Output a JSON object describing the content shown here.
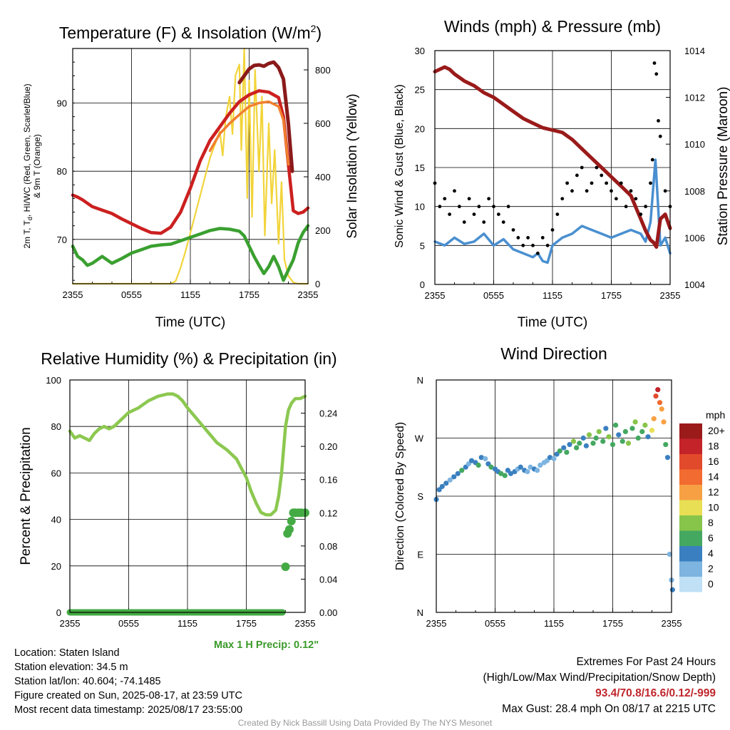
{
  "chart_data": [
    {
      "type": "line",
      "title": "Temperature (F) & Insolation (W/m",
      "title_superscript": "2",
      "title_close": ")",
      "xlabel": "Time (UTC)",
      "ylabel_left_1": "2m T, T",
      "ylabel_left_sub": "d",
      "ylabel_left_2": ", HI/WC (Red, Green, Scarlet/Blue)",
      "ylabel_left_3": "& 9m T (Orange)",
      "ylabel_right": "Solar Insolation (Yellow)",
      "x_ticks": [
        "2355",
        "0555",
        "1155",
        "1755",
        "2355"
      ],
      "ylim_left": [
        63.5,
        98
      ],
      "y_ticks_left": [
        70,
        80,
        90
      ],
      "ylim_right": [
        0,
        880
      ],
      "y_ticks_right": [
        0,
        200,
        400,
        600,
        800
      ],
      "colors": {
        "temp": "#cc2020",
        "hi": "#8b1a1a",
        "t9m": "#f08030",
        "dew": "#3aa030",
        "solar": "#f2d43a"
      },
      "series": [
        {
          "name": "2m T",
          "x": [
            0,
            0.5,
            1,
            2,
            3,
            4,
            5,
            6,
            7,
            8,
            9,
            10,
            11,
            12,
            13,
            14,
            15,
            16,
            17,
            18,
            19,
            20,
            21,
            21.5,
            22,
            22.5,
            23,
            23.5,
            24
          ],
          "values": [
            76.5,
            76.2,
            75.8,
            74.8,
            74.3,
            73.8,
            73.0,
            72.3,
            71.6,
            71.0,
            70.9,
            71.8,
            74.0,
            77.5,
            81.5,
            84.5,
            86.5,
            88.5,
            90.2,
            91.2,
            91.8,
            91.6,
            90.8,
            88.0,
            81.0,
            74.2,
            73.8,
            74.0,
            74.6
          ]
        },
        {
          "name": "Heat Index",
          "x": [
            17,
            17.5,
            18,
            18.5,
            19,
            19.5,
            20,
            20.5,
            21,
            21.5,
            22,
            22.4
          ],
          "values": [
            93.0,
            94.0,
            95.0,
            95.5,
            95.6,
            95.4,
            95.8,
            96.0,
            95.2,
            93.5,
            87.0,
            80.0
          ]
        },
        {
          "name": "9m T",
          "x": [
            14,
            15,
            16,
            17,
            18,
            19,
            20,
            21,
            21.5,
            22
          ],
          "values": [
            83.0,
            85.5,
            87.0,
            88.3,
            89.5,
            90.0,
            90.2,
            89.5,
            87.5,
            81.0
          ]
        },
        {
          "name": "Dew Point",
          "x": [
            0,
            0.5,
            1,
            1.5,
            2,
            3,
            4,
            5,
            6,
            7,
            8,
            9,
            10,
            11,
            12,
            13,
            14,
            15,
            16,
            17,
            17.5,
            18,
            18.5,
            19,
            19.5,
            20,
            20.5,
            21,
            21.5,
            22,
            22.5,
            23,
            23.5,
            24
          ],
          "values": [
            69.0,
            67.5,
            67.0,
            66.2,
            66.5,
            67.5,
            66.5,
            67.2,
            68.0,
            68.5,
            69.0,
            69.2,
            69.3,
            69.8,
            70.3,
            70.8,
            71.3,
            71.6,
            71.5,
            71.2,
            70.5,
            69.0,
            67.5,
            66.2,
            65.0,
            66.0,
            67.5,
            66.0,
            64.0,
            65.5,
            67.0,
            69.5,
            71.0,
            72.0
          ]
        },
        {
          "name": "Solar",
          "x": [
            0,
            9,
            10,
            10.5,
            11,
            11.5,
            12,
            12.5,
            13,
            13.5,
            14,
            14.5,
            15,
            15.3,
            15.6,
            16,
            16.3,
            16.6,
            17,
            17.2,
            17.5,
            17.8,
            18,
            18.3,
            18.6,
            19,
            19.3,
            19.6,
            20,
            20.3,
            20.6,
            21,
            21.3,
            21.6,
            22,
            22.5,
            23,
            24
          ],
          "values": [
            0,
            0,
            0,
            10,
            60,
            120,
            190,
            260,
            330,
            400,
            470,
            520,
            570,
            480,
            620,
            700,
            560,
            780,
            820,
            500,
            880,
            320,
            760,
            250,
            800,
            420,
            700,
            180,
            600,
            300,
            500,
            150,
            380,
            90,
            30,
            5,
            0,
            0
          ]
        }
      ]
    },
    {
      "type": "line",
      "title": "Winds (mph) & Pressure (mb)",
      "xlabel": "Time (UTC)",
      "ylabel_left": "Sonic Wind & Gust (Blue, Black)",
      "ylabel_right": "Station Pressure (Maroon)",
      "x_ticks": [
        "2355",
        "0555",
        "1155",
        "1755",
        "2355"
      ],
      "ylim_left": [
        0,
        30
      ],
      "y_ticks_left": [
        0,
        5,
        10,
        15,
        20,
        25,
        30
      ],
      "ylim_right": [
        1004,
        1014
      ],
      "y_ticks_right": [
        1004,
        1006,
        1008,
        1010,
        1012,
        1014
      ],
      "colors": {
        "wind": "#4a8fd0",
        "gust": "#000000",
        "pressure": "#9a1a1a"
      },
      "series": [
        {
          "name": "Wind",
          "x": [
            0,
            1,
            2,
            3,
            4,
            5,
            6,
            7,
            8,
            9,
            10,
            10.5,
            11,
            11.5,
            12,
            13,
            14,
            15,
            16,
            17,
            18,
            19,
            20,
            21,
            21.5,
            22,
            22.5,
            23,
            23.5,
            24
          ],
          "values": [
            5.5,
            5.0,
            6.0,
            5.2,
            5.5,
            6.5,
            5.0,
            5.8,
            4.5,
            4.0,
            3.5,
            4.0,
            3.0,
            2.8,
            5.0,
            6.0,
            6.5,
            7.5,
            7.0,
            6.5,
            6.0,
            6.5,
            7.0,
            6.5,
            5.5,
            8.0,
            16.0,
            5.0,
            6.0,
            4.0
          ]
        },
        {
          "name": "Gust",
          "x": [
            0,
            0.5,
            1,
            1.5,
            2,
            2.5,
            3,
            3.5,
            4,
            4.5,
            5,
            5.5,
            6,
            6.5,
            7,
            7.5,
            8,
            8.5,
            9,
            9.5,
            10,
            10.5,
            11,
            11.5,
            12,
            12.5,
            13,
            13.5,
            14,
            14.5,
            15,
            15.5,
            16,
            16.5,
            17,
            17.5,
            18,
            18.5,
            19,
            19.5,
            20,
            20.5,
            21,
            21.5,
            22,
            22.2,
            22.4,
            22.6,
            22.8,
            23,
            23.5,
            24
          ],
          "values": [
            13,
            10,
            11,
            9,
            12,
            10,
            8,
            11,
            9,
            10,
            8,
            11,
            10,
            9,
            8,
            10,
            7,
            6,
            5,
            6,
            5,
            4,
            6,
            5,
            7,
            9,
            11,
            13,
            12,
            14,
            15,
            12,
            13,
            15,
            14,
            13,
            12,
            11,
            13,
            10,
            12,
            11,
            9,
            10,
            13,
            16,
            28.4,
            27,
            21,
            19,
            12,
            10
          ]
        },
        {
          "name": "Pressure",
          "x": [
            0,
            0.5,
            1,
            1.5,
            2,
            3,
            4,
            5,
            6,
            7,
            8,
            9,
            10,
            11,
            12,
            13,
            14,
            15,
            16,
            17,
            18,
            19,
            20,
            20.5,
            21,
            21.5,
            22,
            22.3,
            22.6,
            23,
            23.5,
            24
          ],
          "values": [
            1013.1,
            1013.2,
            1013.3,
            1013.2,
            1013.0,
            1012.7,
            1012.5,
            1012.2,
            1012.0,
            1011.7,
            1011.4,
            1011.1,
            1010.9,
            1010.7,
            1010.6,
            1010.5,
            1010.2,
            1009.8,
            1009.4,
            1009.0,
            1008.6,
            1008.2,
            1007.8,
            1007.3,
            1006.8,
            1006.3,
            1005.9,
            1005.8,
            1005.6,
            1006.8,
            1007.0,
            1006.4
          ]
        }
      ]
    },
    {
      "type": "line",
      "title": "Relative Humidity (%) & Precipitation (in)",
      "ylabel_left": "Percent & Precipitation",
      "x_ticks": [
        "2355",
        "0555",
        "1155",
        "1755",
        "2355"
      ],
      "ylim_left": [
        0,
        100
      ],
      "y_ticks_left": [
        0,
        20,
        40,
        60,
        80,
        100
      ],
      "ylim_right": [
        0,
        0.28
      ],
      "y_ticks_right": [
        "0.00",
        "0.04",
        "0.08",
        "0.12",
        "0.16",
        "0.20",
        "0.24"
      ],
      "colors": {
        "rh": "#8cc850",
        "precip": "#44aa44"
      },
      "max_1h_precip": "Max 1 H Precip: 0.12\"",
      "series": [
        {
          "name": "RH",
          "x": [
            0,
            0.5,
            1,
            1.5,
            2,
            2.5,
            3,
            3.5,
            4,
            4.5,
            5,
            5.5,
            6,
            7,
            8,
            9,
            10,
            10.5,
            11,
            11.5,
            12,
            13,
            14,
            15,
            16,
            17,
            17.5,
            18,
            18.5,
            19,
            19.5,
            20,
            20.5,
            21,
            21.3,
            21.6,
            22,
            22.3,
            22.6,
            23,
            23.5,
            24
          ],
          "values": [
            78,
            75,
            76,
            75,
            74,
            77,
            79,
            80,
            79,
            80,
            82,
            84,
            86,
            88,
            91,
            93,
            94,
            94,
            93,
            91,
            88,
            83,
            78,
            73,
            70,
            66,
            62,
            58,
            52,
            47,
            43,
            42,
            42,
            44,
            50,
            60,
            80,
            87,
            90,
            92,
            92,
            93
          ]
        },
        {
          "name": "Precipitation",
          "x": [
            0,
            4,
            8,
            12,
            16,
            20,
            21.5,
            22,
            22.2,
            22.4,
            22.6,
            22.8,
            23,
            23.3,
            23.6,
            24
          ],
          "values": [
            0,
            0,
            0,
            0,
            0,
            0,
            0,
            0.055,
            0.095,
            0.1,
            0.11,
            0.12,
            0.12,
            0.12,
            0.12,
            0.12
          ]
        }
      ]
    },
    {
      "type": "scatter",
      "title": "Wind Direction",
      "ylabel_left": "Direction (Colored By Speed)",
      "x_ticks": [
        "2355",
        "0555",
        "1155",
        "1755",
        "2355"
      ],
      "y_ticks": [
        "N",
        "E",
        "S",
        "W",
        "N"
      ],
      "ylim": [
        0,
        360
      ],
      "colorbar_title": "mph",
      "colorbar_labels": [
        "20+",
        "18",
        "16",
        "14",
        "12",
        "10",
        "8",
        "6",
        "4",
        "2",
        "0"
      ],
      "colorbar_colors": [
        "#9b1a1a",
        "#c4232a",
        "#e24a2c",
        "#f26b30",
        "#f7a043",
        "#e9df55",
        "#87c44a",
        "#44a860",
        "#3a80c0",
        "#7db4e0",
        "#bfe0f5"
      ],
      "points": [
        [
          0,
          175,
          4
        ],
        [
          0.3,
          190,
          5
        ],
        [
          0.6,
          195,
          5
        ],
        [
          1,
          200,
          4
        ],
        [
          1.4,
          205,
          3
        ],
        [
          1.8,
          210,
          5
        ],
        [
          2.2,
          215,
          4
        ],
        [
          2.6,
          220,
          6
        ],
        [
          3,
          225,
          4
        ],
        [
          3.3,
          230,
          3
        ],
        [
          3.6,
          235,
          5
        ],
        [
          4,
          232,
          4
        ],
        [
          4.3,
          228,
          6
        ],
        [
          4.6,
          240,
          4
        ],
        [
          5,
          238,
          3
        ],
        [
          5.3,
          230,
          5
        ],
        [
          5.6,
          225,
          6
        ],
        [
          6,
          222,
          4
        ],
        [
          6.3,
          218,
          5
        ],
        [
          6.6,
          215,
          6
        ],
        [
          7,
          212,
          7
        ],
        [
          7.3,
          220,
          4
        ],
        [
          7.6,
          215,
          5
        ],
        [
          8,
          218,
          4
        ],
        [
          8.3,
          222,
          3
        ],
        [
          8.6,
          225,
          5
        ],
        [
          9,
          220,
          4
        ],
        [
          9.3,
          218,
          2
        ],
        [
          9.6,
          225,
          3
        ],
        [
          10,
          222,
          4
        ],
        [
          10.3,
          220,
          2
        ],
        [
          10.6,
          228,
          2
        ],
        [
          11,
          232,
          3
        ],
        [
          11.3,
          235,
          2
        ],
        [
          11.6,
          240,
          4
        ],
        [
          12,
          238,
          3
        ],
        [
          12.3,
          245,
          4
        ],
        [
          12.6,
          250,
          6
        ],
        [
          13,
          255,
          4
        ],
        [
          13.3,
          248,
          7
        ],
        [
          13.6,
          260,
          4
        ],
        [
          14,
          265,
          8
        ],
        [
          14.3,
          255,
          6
        ],
        [
          14.6,
          262,
          7
        ],
        [
          15,
          270,
          5
        ],
        [
          15.3,
          258,
          4
        ],
        [
          15.6,
          275,
          8
        ],
        [
          16,
          262,
          6
        ],
        [
          16.3,
          270,
          7
        ],
        [
          16.6,
          280,
          8
        ],
        [
          17,
          265,
          6
        ],
        [
          17.3,
          285,
          4
        ],
        [
          17.6,
          272,
          8
        ],
        [
          18,
          260,
          6
        ],
        [
          18.3,
          290,
          7
        ],
        [
          18.6,
          275,
          4
        ],
        [
          19,
          265,
          6
        ],
        [
          19.3,
          280,
          7
        ],
        [
          19.6,
          262,
          8
        ],
        [
          20,
          285,
          6
        ],
        [
          20.3,
          295,
          8
        ],
        [
          20.6,
          270,
          7
        ],
        [
          21,
          280,
          6
        ],
        [
          21.3,
          290,
          8
        ],
        [
          21.6,
          272,
          5
        ],
        [
          22,
          282,
          10
        ],
        [
          22.2,
          300,
          12
        ],
        [
          22.4,
          335,
          17
        ],
        [
          22.6,
          345,
          18
        ],
        [
          22.8,
          325,
          14
        ],
        [
          23,
          315,
          12
        ],
        [
          23.2,
          295,
          13
        ],
        [
          23.4,
          260,
          7
        ],
        [
          23.6,
          240,
          4
        ],
        [
          23.8,
          90,
          2
        ],
        [
          24,
          50,
          3
        ],
        [
          24.1,
          35,
          4
        ]
      ]
    }
  ],
  "info_left": {
    "location": "Location: Staten Island",
    "elevation": "Station elevation: 34.5 m",
    "latlon": "Station lat/lon: 40.604; -74.1485",
    "created": "Figure created on Sun, 2025-08-17, at 23:59 UTC",
    "recent": "Most recent data timestamp: 2025/08/17 23:55:00"
  },
  "info_right": {
    "extremes_title": "Extremes For Past 24 Hours",
    "extremes_subtitle": "(High/Low/Max Wind/Precipitation/Snow Depth)",
    "extremes_values": "93.4/70.8/16.6/0.12/-999",
    "max_gust": "Max Gust: 28.4 mph On 08/17 at 2215 UTC"
  },
  "credit": "Created By Nick Bassill Using Data Provided By The NYS Mesonet"
}
